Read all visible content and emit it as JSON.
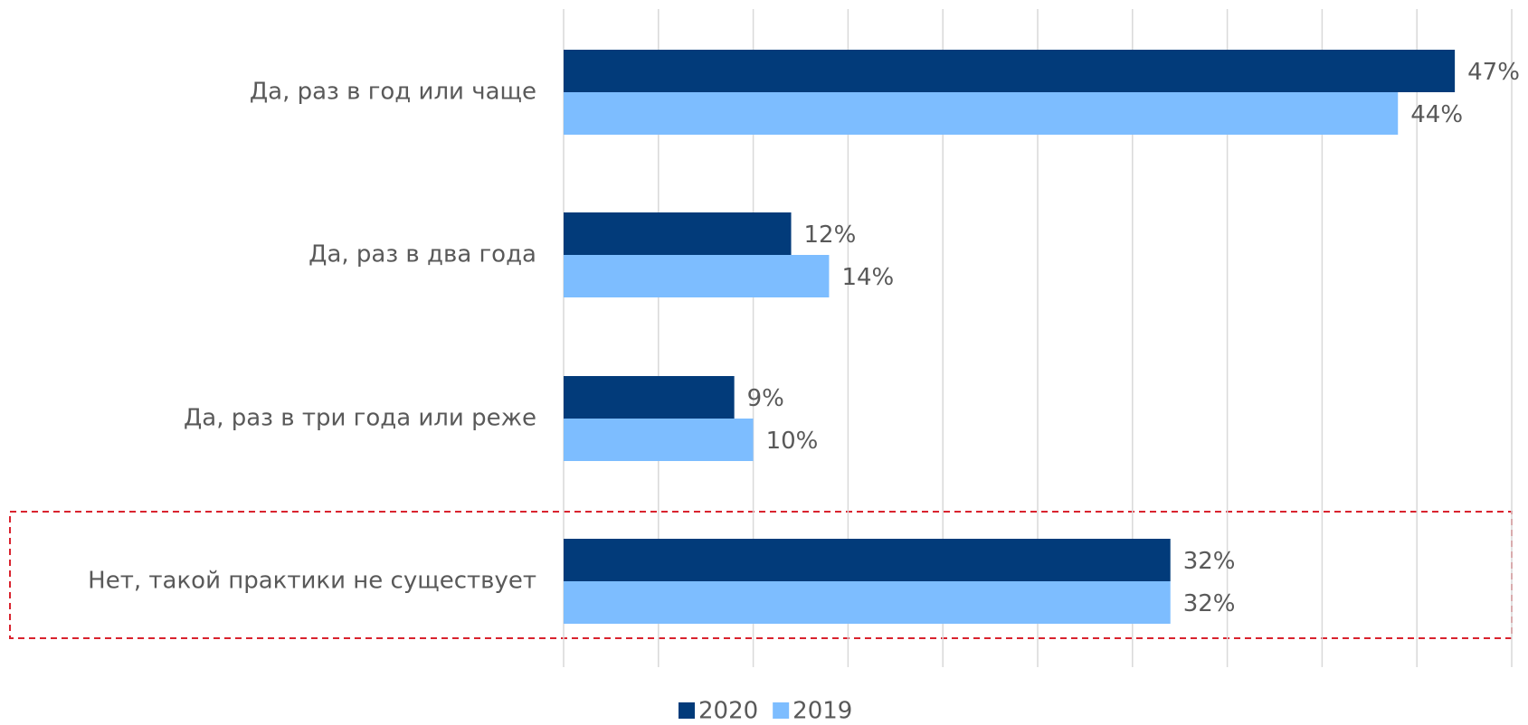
{
  "chart_data": {
    "type": "bar",
    "orientation": "horizontal",
    "categories": [
      "Да, раз в год или чаще",
      "Да, раз в два года",
      "Да, раз в три года или реже",
      "Нет, такой практики не существует"
    ],
    "series": [
      {
        "name": "2020",
        "color": "#023b7a",
        "values": [
          47,
          12,
          9,
          32
        ],
        "value_labels": [
          "47%",
          "12%",
          "9%",
          "32%"
        ]
      },
      {
        "name": "2019",
        "color": "#7dbdff",
        "values": [
          44,
          14,
          10,
          32
        ],
        "value_labels": [
          "44%",
          "14%",
          "10%",
          "32%"
        ]
      }
    ],
    "xlim": [
      0,
      50
    ],
    "xticks": [
      0,
      5,
      10,
      15,
      20,
      25,
      30,
      35,
      40,
      45,
      50
    ],
    "grid": true,
    "legend": "bottom"
  }
}
